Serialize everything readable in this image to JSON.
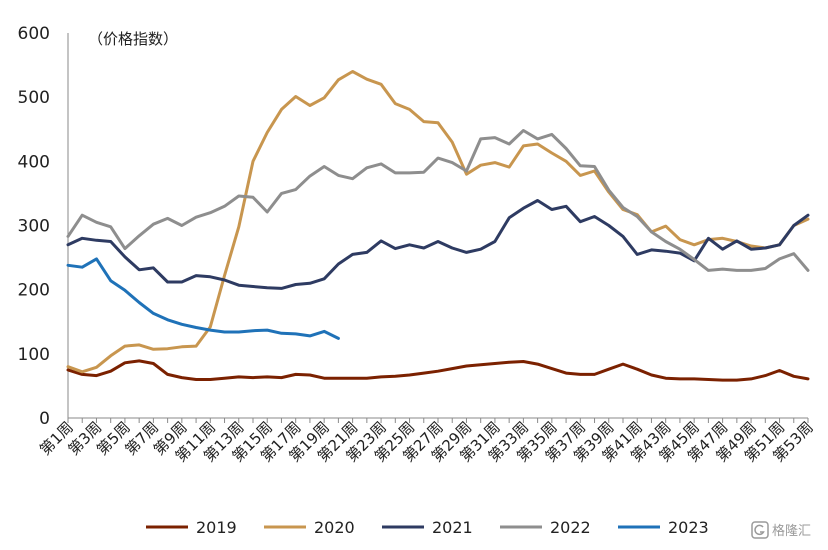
{
  "chart_data": {
    "type": "line",
    "ylabel": "（价格指数）",
    "ylim": [
      0,
      600
    ],
    "yticks": [
      0,
      100,
      200,
      300,
      400,
      500,
      600
    ],
    "x_labels": [
      "第1周",
      "第3周",
      "第5周",
      "第7周",
      "第9周",
      "第11周",
      "第13周",
      "第15周",
      "第17周",
      "第19周",
      "第21周",
      "第23周",
      "第25周",
      "第27周",
      "第29周",
      "第31周",
      "第33周",
      "第35周",
      "第37周",
      "第39周",
      "第41周",
      "第43周",
      "第45周",
      "第47周",
      "第49周",
      "第51周",
      "第53周"
    ],
    "x_range": [
      1,
      53
    ],
    "legend_position": "bottom",
    "series": [
      {
        "name": "2019",
        "color": "#7b2100",
        "values": [
          75,
          68,
          66,
          73,
          86,
          89,
          85,
          68,
          63,
          60,
          60,
          62,
          64,
          63,
          64,
          63,
          68,
          67,
          62,
          62,
          62,
          62,
          64,
          65,
          67,
          70,
          73,
          77,
          81,
          83,
          85,
          87,
          88,
          84,
          77,
          70,
          68,
          68,
          76,
          84,
          76,
          67,
          62,
          61,
          61,
          60,
          59,
          59,
          61,
          66,
          74,
          65,
          61
        ]
      },
      {
        "name": "2020",
        "color": "#c8964f",
        "values": [
          80,
          72,
          79,
          97,
          112,
          114,
          107,
          108,
          111,
          112,
          142,
          222,
          298,
          400,
          445,
          481,
          501,
          487,
          499,
          527,
          540,
          528,
          520,
          490,
          481,
          462,
          460,
          430,
          380,
          394,
          398,
          391,
          424,
          427,
          413,
          400,
          378,
          385,
          352,
          325,
          317,
          290,
          299,
          278,
          270,
          278,
          280,
          275,
          268,
          265,
          270,
          300,
          310
        ]
      },
      {
        "name": "2021",
        "color": "#2e3b62",
        "values": [
          270,
          280,
          277,
          275,
          251,
          231,
          234,
          212,
          212,
          222,
          220,
          215,
          207,
          205,
          203,
          202,
          208,
          210,
          217,
          240,
          255,
          258,
          276,
          264,
          270,
          265,
          275,
          265,
          258,
          263,
          275,
          312,
          327,
          339,
          325,
          330,
          306,
          314,
          300,
          283,
          255,
          262,
          260,
          257,
          245,
          280,
          263,
          276,
          263,
          265,
          270,
          300,
          316
        ]
      },
      {
        "name": "2022",
        "color": "#8e8e8e",
        "values": [
          283,
          316,
          305,
          298,
          264,
          284,
          302,
          311,
          300,
          313,
          320,
          330,
          346,
          344,
          321,
          350,
          356,
          377,
          392,
          378,
          373,
          390,
          396,
          382,
          382,
          383,
          405,
          398,
          385,
          435,
          437,
          427,
          448,
          435,
          442,
          420,
          393,
          392,
          355,
          328,
          314,
          290,
          275,
          263,
          247,
          230,
          232,
          230,
          230,
          233,
          248,
          256,
          230
        ]
      },
      {
        "name": "2023",
        "color": "#1f72b8",
        "values": [
          238,
          235,
          248,
          214,
          199,
          180,
          163,
          153,
          146,
          141,
          137,
          134,
          134,
          136,
          137,
          132,
          131,
          128,
          135,
          124
        ]
      }
    ]
  },
  "watermark": {
    "text": "格隆汇",
    "icon": "gelonghui-logo-icon"
  }
}
